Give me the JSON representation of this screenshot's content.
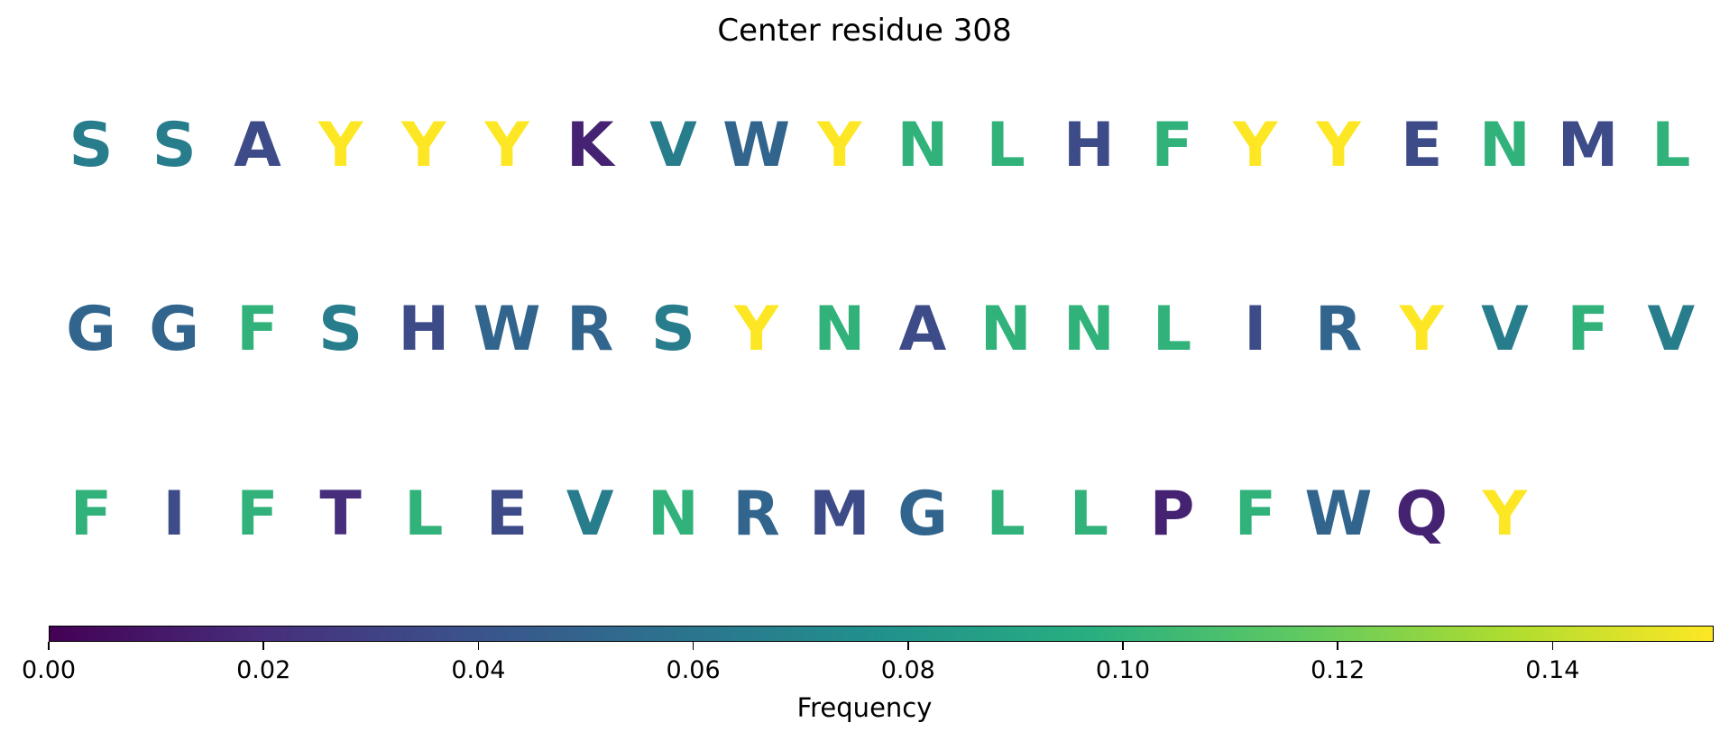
{
  "chart_data": {
    "type": "heatmap",
    "title": "Center residue 308",
    "colorbar": {
      "label": "Frequency",
      "range": [
        0,
        0.155
      ],
      "colormap": "viridis",
      "ticks": [
        "0.00",
        "0.02",
        "0.04",
        "0.06",
        "0.08",
        "0.10",
        "0.12",
        "0.14"
      ],
      "tick_values": [
        0,
        0.02,
        0.04,
        0.06,
        0.08,
        0.1,
        0.12,
        0.14
      ]
    },
    "rows": [
      [
        {
          "residue": "S",
          "frequency": 0.065
        },
        {
          "residue": "S",
          "frequency": 0.065
        },
        {
          "residue": "A",
          "frequency": 0.035
        },
        {
          "residue": "Y",
          "frequency": 0.155
        },
        {
          "residue": "Y",
          "frequency": 0.155
        },
        {
          "residue": "Y",
          "frequency": 0.155
        },
        {
          "residue": "K",
          "frequency": 0.015
        },
        {
          "residue": "V",
          "frequency": 0.065
        },
        {
          "residue": "W",
          "frequency": 0.05
        },
        {
          "residue": "Y",
          "frequency": 0.155
        },
        {
          "residue": "N",
          "frequency": 0.1
        },
        {
          "residue": "L",
          "frequency": 0.1
        },
        {
          "residue": "H",
          "frequency": 0.035
        },
        {
          "residue": "F",
          "frequency": 0.1
        },
        {
          "residue": "Y",
          "frequency": 0.155
        },
        {
          "residue": "Y",
          "frequency": 0.155
        },
        {
          "residue": "E",
          "frequency": 0.035
        },
        {
          "residue": "N",
          "frequency": 0.1
        },
        {
          "residue": "M",
          "frequency": 0.035
        },
        {
          "residue": "L",
          "frequency": 0.1
        }
      ],
      [
        {
          "residue": "G",
          "frequency": 0.05
        },
        {
          "residue": "G",
          "frequency": 0.05
        },
        {
          "residue": "F",
          "frequency": 0.1
        },
        {
          "residue": "S",
          "frequency": 0.065
        },
        {
          "residue": "H",
          "frequency": 0.035
        },
        {
          "residue": "W",
          "frequency": 0.05
        },
        {
          "residue": "R",
          "frequency": 0.05
        },
        {
          "residue": "S",
          "frequency": 0.065
        },
        {
          "residue": "Y",
          "frequency": 0.155
        },
        {
          "residue": "N",
          "frequency": 0.1
        },
        {
          "residue": "A",
          "frequency": 0.035
        },
        {
          "residue": "N",
          "frequency": 0.1
        },
        {
          "residue": "N",
          "frequency": 0.1
        },
        {
          "residue": "L",
          "frequency": 0.1
        },
        {
          "residue": "I",
          "frequency": 0.035
        },
        {
          "residue": "R",
          "frequency": 0.05
        },
        {
          "residue": "Y",
          "frequency": 0.155
        },
        {
          "residue": "V",
          "frequency": 0.065
        },
        {
          "residue": "F",
          "frequency": 0.1
        },
        {
          "residue": "V",
          "frequency": 0.065
        }
      ],
      [
        {
          "residue": "F",
          "frequency": 0.1
        },
        {
          "residue": "I",
          "frequency": 0.035
        },
        {
          "residue": "F",
          "frequency": 0.1
        },
        {
          "residue": "T",
          "frequency": 0.02
        },
        {
          "residue": "L",
          "frequency": 0.1
        },
        {
          "residue": "E",
          "frequency": 0.035
        },
        {
          "residue": "V",
          "frequency": 0.065
        },
        {
          "residue": "N",
          "frequency": 0.1
        },
        {
          "residue": "R",
          "frequency": 0.05
        },
        {
          "residue": "M",
          "frequency": 0.035
        },
        {
          "residue": "G",
          "frequency": 0.05
        },
        {
          "residue": "L",
          "frequency": 0.1
        },
        {
          "residue": "L",
          "frequency": 0.1
        },
        {
          "residue": "P",
          "frequency": 0.015
        },
        {
          "residue": "F",
          "frequency": 0.1
        },
        {
          "residue": "W",
          "frequency": 0.05
        },
        {
          "residue": "Q",
          "frequency": 0.015
        },
        {
          "residue": "Y",
          "frequency": 0.155
        }
      ]
    ]
  }
}
